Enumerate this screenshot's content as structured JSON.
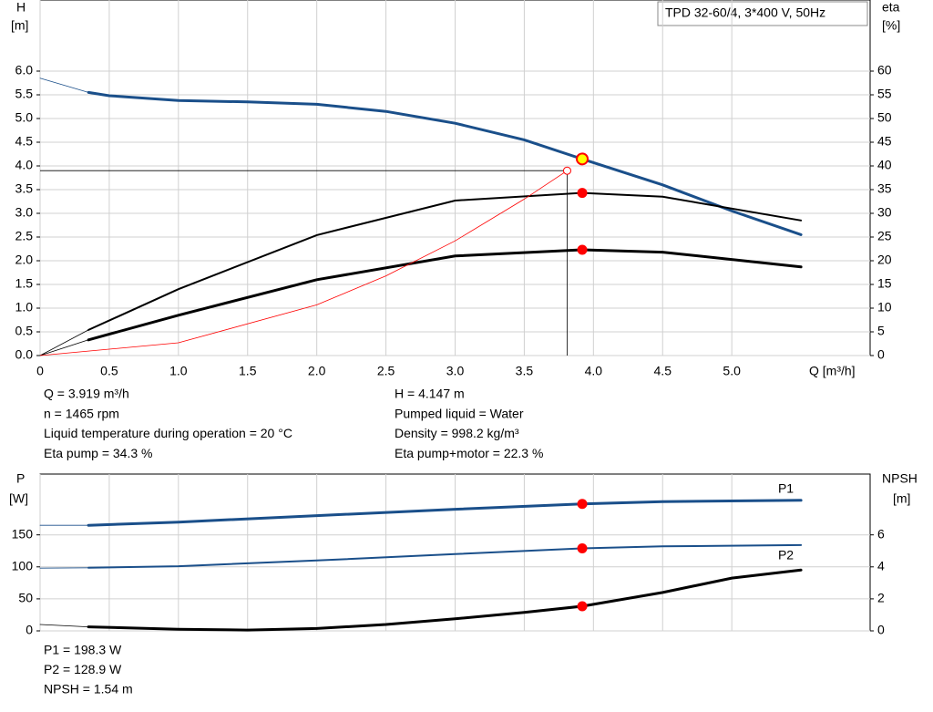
{
  "chart_data": [
    {
      "type": "line",
      "title": "TPD 32-60/4, 3*400 V, 50Hz",
      "y_label": "H",
      "y_unit": "[m]",
      "y2_label": "eta",
      "y2_unit": "[%]",
      "x_label": "Q [m³/h]",
      "xlim": [
        0,
        6
      ],
      "ylim": [
        0,
        7.5
      ],
      "y2lim": [
        0,
        75
      ],
      "xticks": [
        0,
        0.5,
        {
          "value": 1,
          "label": "1.0"
        },
        1.5,
        {
          "value": 2,
          "label": "2.0"
        },
        2.5,
        {
          "value": 3,
          "label": "3.0"
        },
        3.5,
        {
          "value": 4,
          "label": "4.0"
        },
        4.5,
        {
          "value": 5,
          "label": "5.0"
        }
      ],
      "yticks": [
        {
          "value": 0,
          "label": "0.0"
        },
        0.5,
        {
          "value": 1,
          "label": "1.0"
        },
        1.5,
        {
          "value": 2,
          "label": "2.0"
        },
        2.5,
        {
          "value": 3,
          "label": "3.0"
        },
        3.5,
        {
          "value": 4,
          "label": "4.0"
        },
        4.5,
        {
          "value": 5,
          "label": "5.0"
        },
        5.5,
        {
          "value": 6,
          "label": "6.0"
        }
      ],
      "y2ticks": [
        0,
        5,
        10,
        15,
        20,
        25,
        30,
        35,
        40,
        45,
        50,
        55,
        60
      ],
      "grid": true,
      "operating_point": {
        "x": 3.919,
        "y": 4.147
      },
      "series": [
        {
          "color": "#1a4f8a",
          "width": 3,
          "x": [
            0,
            0.35,
            0.5,
            1,
            1.5,
            2,
            2.5,
            3,
            3.5,
            3.919,
            4.5,
            5,
            5.5
          ],
          "values": [
            5.85,
            5.55,
            5.48,
            5.38,
            5.35,
            5.3,
            5.15,
            4.9,
            4.55,
            4.147,
            3.6,
            3.05,
            2.55
          ]
        },
        {
          "color": "#000000",
          "width": 2,
          "axis": "y2",
          "x": [
            0,
            0.35,
            1,
            2,
            3,
            3.919,
            4.5,
            5.5
          ],
          "values": [
            0,
            5.4,
            14,
            25.4,
            32.7,
            34.3,
            33.5,
            28.5
          ]
        },
        {
          "color": "#000000",
          "width": 3,
          "axis": "y2",
          "x": [
            0,
            0.35,
            1,
            2,
            3,
            3.919,
            4.5,
            5.5
          ],
          "values": [
            0,
            3.3,
            8.5,
            16,
            21,
            22.3,
            21.8,
            18.7
          ]
        },
        {
          "color": "#ff0000",
          "width": 0.8,
          "system": true,
          "x": [
            0,
            1,
            2,
            2.5,
            3,
            3.5,
            3.81
          ],
          "values": [
            0,
            0.27,
            1.07,
            1.68,
            2.42,
            3.3,
            3.9
          ]
        }
      ],
      "annotations": [
        "Q = 3.919 m³/h",
        "H = 4.147 m",
        "n = 1465 rpm",
        "Pumped liquid = Water",
        "Liquid temperature during operation = 20 °C",
        "Density = 998.2 kg/m³",
        "Eta pump = 34.3 %",
        "Eta pump+motor = 22.3 %"
      ]
    },
    {
      "type": "line",
      "y_label": "P",
      "y_unit": "[W]",
      "y2_label": "NPSH",
      "y2_unit": "[m]",
      "xlim": [
        0,
        6
      ],
      "ylim": [
        0,
        245
      ],
      "y2lim": [
        0,
        9.8
      ],
      "yticks": [
        0,
        50,
        100,
        150
      ],
      "y2ticks": [
        0,
        2,
        4,
        6
      ],
      "grid": true,
      "operating_x": 3.919,
      "series": [
        {
          "name": "P1",
          "color": "#1a4f8a",
          "width": 3,
          "x": [
            0,
            0.35,
            1,
            2,
            3,
            3.919,
            4.5,
            5.5
          ],
          "values": [
            165,
            165,
            170,
            180,
            190,
            198.3,
            202,
            204
          ]
        },
        {
          "name": "P2",
          "color": "#1a4f8a",
          "width": 2,
          "x": [
            0,
            0.35,
            1,
            2,
            3,
            3.919,
            4.5,
            5.5
          ],
          "values": [
            98,
            98.5,
            101,
            110,
            120,
            128.9,
            132,
            134
          ]
        },
        {
          "color": "#000000",
          "width": 3,
          "axis": "y2",
          "x": [
            0,
            0.35,
            1,
            1.5,
            2,
            2.5,
            3,
            3.5,
            3.919,
            4.5,
            5,
            5.5
          ],
          "values": [
            0.4,
            0.25,
            0.1,
            0.05,
            0.15,
            0.4,
            0.75,
            1.15,
            1.54,
            2.4,
            3.3,
            3.8
          ]
        }
      ],
      "annotations": [
        "P1 = 198.3 W",
        "P2 = 128.9 W",
        "NPSH = 1.54 m"
      ]
    }
  ]
}
